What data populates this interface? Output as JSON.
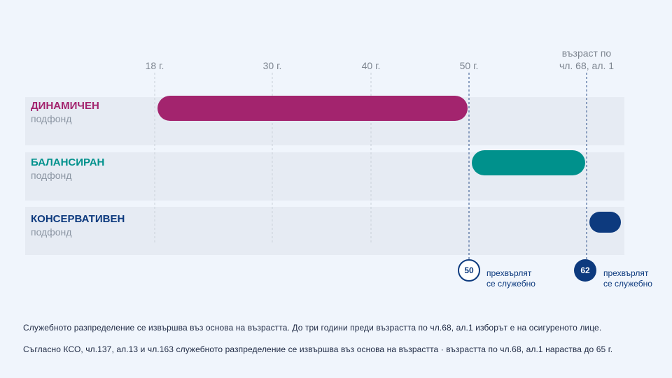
{
  "chart_data": {
    "type": "gantt",
    "axis_ticks": [
      "18 г.",
      "30 г.",
      "40 г.",
      "50 г."
    ],
    "axis_end_label": [
      "възраст по",
      "чл. 68, ал. 1"
    ],
    "series": [
      {
        "name": "ДИНАМИЧЕН",
        "subtitle": "подфонд",
        "start": 18,
        "end": 50,
        "color": "#a3246e"
      },
      {
        "name": "БАЛАНСИРАН",
        "subtitle": "подфонд",
        "start": 50,
        "end": 62,
        "color": "#00918c"
      },
      {
        "name": "КОНСЕРВАТИВЕН",
        "subtitle": "подфонд",
        "start": 62,
        "end": 65,
        "color": "#0d3a7e"
      }
    ],
    "markers": [
      {
        "value": "50",
        "text": [
          "прехвърлят",
          "се служебно"
        ]
      },
      {
        "value": "62",
        "text": [
          "прехвърлят",
          "се служебно"
        ]
      }
    ]
  },
  "footnotes": [
    "Служебното разпределение се извършва въз основа на възрастта. До три години преди възрастта по чл.68, ал.1 изборът е на осигуреното лице.",
    "Съгласно КСО, чл.137, ал.13 и чл.163 служебното разпределение се извършва въз основа на възрастта · възрастта по чл.68, ал.1 нараства до 65 г."
  ]
}
